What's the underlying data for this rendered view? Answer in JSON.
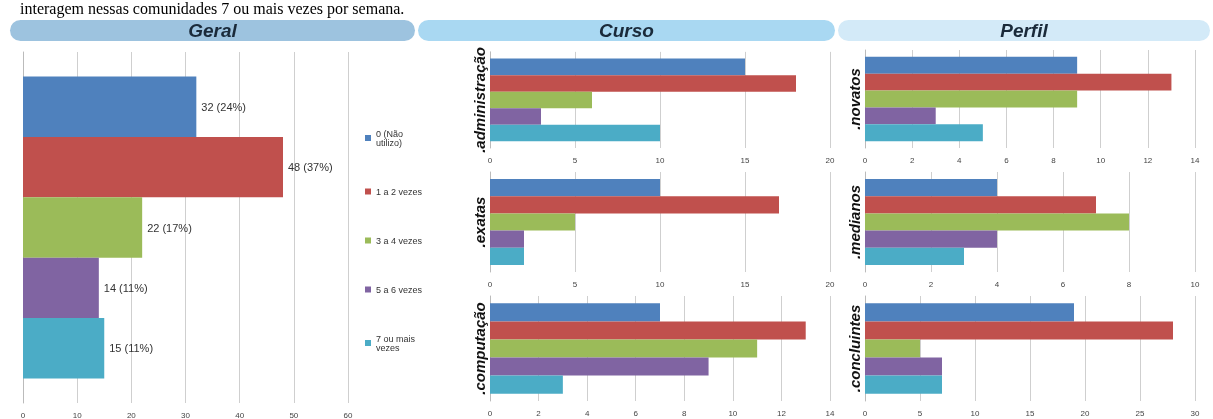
{
  "chart_data": [
    {
      "type": "bar",
      "orientation": "horizontal",
      "title": "Geral",
      "annotations": [
        "interagem nessas comunidades 7 ou mais vezes por semana."
      ],
      "categories": [
        null
      ],
      "legend": "right",
      "grid": "x",
      "xlim": [
        0,
        60
      ],
      "xticks": [
        0,
        10,
        20,
        30,
        40,
        50,
        60
      ],
      "series": [
        {
          "name": "0 (Não utilizo)",
          "color": "#4f81bd",
          "values": [
            32
          ],
          "value_labels": [
            "32 (24%)"
          ]
        },
        {
          "name": "1 a 2 vezes",
          "color": "#c0504d",
          "values": [
            48
          ],
          "value_labels": [
            "48 (37%)"
          ]
        },
        {
          "name": "3 a 4 vezes",
          "color": "#9bbb59",
          "values": [
            22
          ],
          "value_labels": [
            "22 (17%)"
          ]
        },
        {
          "name": "5 a 6 vezes",
          "color": "#8064a2",
          "values": [
            14
          ],
          "value_labels": [
            "14 (11%)"
          ]
        },
        {
          "name": "7 ou mais vezes",
          "color": "#4bacc6",
          "values": [
            15
          ],
          "value_labels": [
            "15 (11%)"
          ]
        }
      ]
    },
    {
      "type": "bar",
      "orientation": "horizontal",
      "title": "Curso",
      "categories": [
        ".administração"
      ],
      "grid": "x",
      "xlim": [
        0,
        20
      ],
      "xticks": [
        0,
        5,
        10,
        15,
        20
      ],
      "series": [
        {
          "color": "#4f81bd",
          "values": [
            15
          ]
        },
        {
          "color": "#c0504d",
          "values": [
            18
          ]
        },
        {
          "color": "#9bbb59",
          "values": [
            6
          ]
        },
        {
          "color": "#8064a2",
          "values": [
            3
          ]
        },
        {
          "color": "#4bacc6",
          "values": [
            10
          ]
        }
      ]
    },
    {
      "type": "bar",
      "orientation": "horizontal",
      "categories": [
        ".exatas"
      ],
      "grid": "x",
      "xlim": [
        0,
        20
      ],
      "xticks": [
        0,
        5,
        10,
        15,
        20
      ],
      "series": [
        {
          "color": "#4f81bd",
          "values": [
            10
          ]
        },
        {
          "color": "#c0504d",
          "values": [
            17
          ]
        },
        {
          "color": "#9bbb59",
          "values": [
            5
          ]
        },
        {
          "color": "#8064a2",
          "values": [
            2
          ]
        },
        {
          "color": "#4bacc6",
          "values": [
            2
          ]
        }
      ]
    },
    {
      "type": "bar",
      "orientation": "horizontal",
      "categories": [
        ".computação"
      ],
      "grid": "x",
      "xlim": [
        0,
        14
      ],
      "xticks": [
        0,
        2,
        4,
        6,
        8,
        10,
        12,
        14
      ],
      "series": [
        {
          "color": "#4f81bd",
          "values": [
            7
          ]
        },
        {
          "color": "#c0504d",
          "values": [
            13
          ]
        },
        {
          "color": "#9bbb59",
          "values": [
            11
          ]
        },
        {
          "color": "#8064a2",
          "values": [
            9
          ]
        },
        {
          "color": "#4bacc6",
          "values": [
            3
          ]
        }
      ]
    },
    {
      "type": "bar",
      "orientation": "horizontal",
      "title": "Perfil",
      "categories": [
        ".novatos"
      ],
      "grid": "x",
      "xlim": [
        0,
        14
      ],
      "xticks": [
        0,
        2,
        4,
        6,
        8,
        10,
        12,
        14
      ],
      "series": [
        {
          "color": "#4f81bd",
          "values": [
            9
          ]
        },
        {
          "color": "#c0504d",
          "values": [
            13
          ]
        },
        {
          "color": "#9bbb59",
          "values": [
            9
          ]
        },
        {
          "color": "#8064a2",
          "values": [
            3
          ]
        },
        {
          "color": "#4bacc6",
          "values": [
            5
          ]
        }
      ]
    },
    {
      "type": "bar",
      "orientation": "horizontal",
      "categories": [
        ".medianos"
      ],
      "grid": "x",
      "xlim": [
        0,
        10
      ],
      "xticks": [
        0,
        2,
        4,
        6,
        8,
        10
      ],
      "series": [
        {
          "color": "#4f81bd",
          "values": [
            4
          ]
        },
        {
          "color": "#c0504d",
          "values": [
            7
          ]
        },
        {
          "color": "#9bbb59",
          "values": [
            8
          ]
        },
        {
          "color": "#8064a2",
          "values": [
            4
          ]
        },
        {
          "color": "#4bacc6",
          "values": [
            3
          ]
        }
      ]
    },
    {
      "type": "bar",
      "orientation": "horizontal",
      "categories": [
        ".concluintes"
      ],
      "grid": "x",
      "xlim": [
        0,
        30
      ],
      "xticks": [
        0,
        5,
        10,
        15,
        20,
        25,
        30
      ],
      "series": [
        {
          "color": "#4f81bd",
          "values": [
            19
          ]
        },
        {
          "color": "#c0504d",
          "values": [
            28
          ]
        },
        {
          "color": "#9bbb59",
          "values": [
            5
          ]
        },
        {
          "color": "#8064a2",
          "values": [
            7
          ]
        },
        {
          "color": "#4bacc6",
          "values": [
            7
          ]
        }
      ]
    }
  ]
}
